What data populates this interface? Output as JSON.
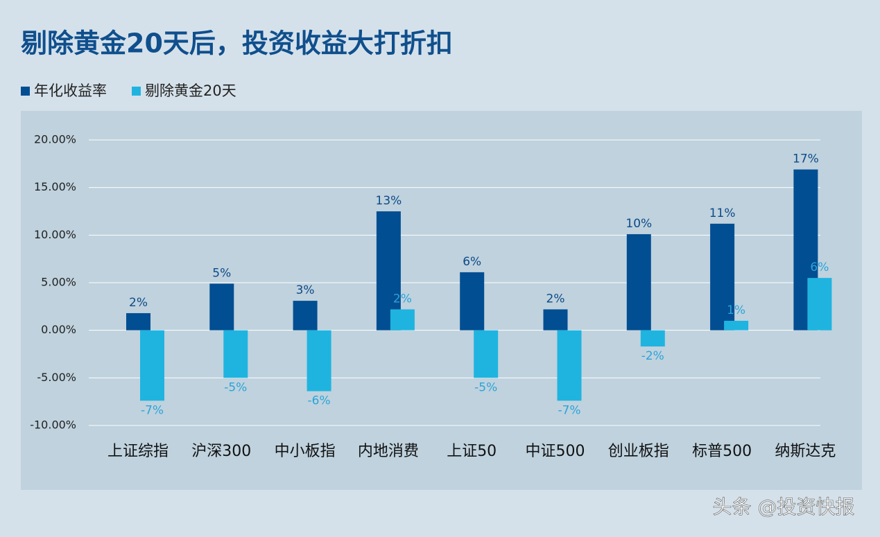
{
  "chart_data": {
    "type": "bar",
    "title": "剔除黄金20天后，投资收益大打折扣",
    "categories": [
      "上证综指",
      "沪深300",
      "中小板指",
      "内地消费",
      "上证50",
      "中证500",
      "创业板指",
      "标普500",
      "纳斯达克"
    ],
    "series": [
      {
        "name": "年化收益率",
        "color": "#024e92",
        "values": [
          1.8,
          4.9,
          3.1,
          12.5,
          6.1,
          2.2,
          10.1,
          11.2,
          16.9
        ],
        "value_labels": [
          "2%",
          "5%",
          "3%",
          "13%",
          "6%",
          "2%",
          "10%",
          "11%",
          "17%"
        ]
      },
      {
        "name": "剔除黄金20天",
        "color": "#1fb4e0",
        "values": [
          -7.4,
          -5.0,
          -6.4,
          2.2,
          -5.0,
          -7.4,
          -1.7,
          1.0,
          5.5
        ],
        "value_labels": [
          "-7%",
          "-5%",
          "-6%",
          "2%",
          "-5%",
          "-7%",
          "-2%",
          "1%",
          "6%"
        ]
      }
    ],
    "ylim": [
      -10,
      20
    ],
    "yticks": [
      {
        "value": -10,
        "label": "-10.00%"
      },
      {
        "value": -5,
        "label": "-5.00%"
      },
      {
        "value": 0,
        "label": "0.00%"
      },
      {
        "value": 5,
        "label": "5.00%"
      },
      {
        "value": 10,
        "label": "10.00%"
      },
      {
        "value": 15,
        "label": "15.00%"
      },
      {
        "value": 20,
        "label": "20.00%"
      }
    ],
    "grid": true,
    "watermark": "头条 @投资快报"
  }
}
